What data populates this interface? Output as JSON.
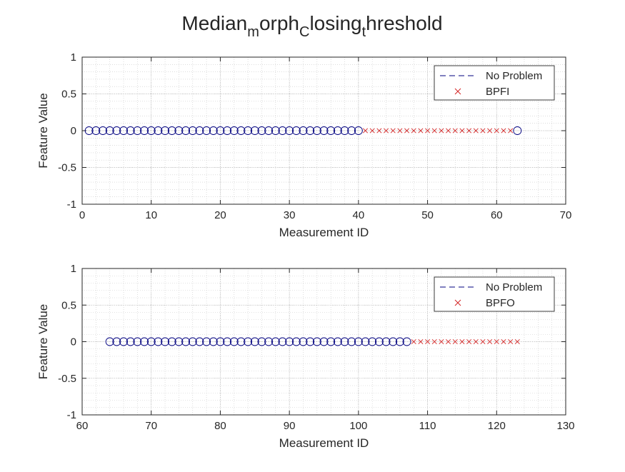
{
  "figure": {
    "title_parts": [
      {
        "text": "Median",
        "sub": false
      },
      {
        "text": "m",
        "sub": true
      },
      {
        "text": "orph",
        "sub": false
      },
      {
        "text": "C",
        "sub": true
      },
      {
        "text": "losing",
        "sub": false
      },
      {
        "text": "t",
        "sub": true
      },
      {
        "text": "hreshold",
        "sub": false
      }
    ]
  },
  "colors": {
    "no_problem": "#00007f",
    "fault": "#d32626",
    "axis": "#262626",
    "grid": "#d9d9d9"
  },
  "chart_data": [
    {
      "type": "scatter",
      "xlabel": "Measurement ID",
      "ylabel": "Feature Value",
      "xlim": [
        0,
        70
      ],
      "ylim": [
        -1,
        1
      ],
      "xticks": [
        "0",
        "10",
        "20",
        "30",
        "40",
        "50",
        "60",
        "70"
      ],
      "yticks": [
        "1",
        "0.5",
        "0",
        "-0.5",
        "-1"
      ],
      "grid": true,
      "minor_grid": true,
      "legend_position": "top-right",
      "series": [
        {
          "name": "No Problem",
          "marker": "circle",
          "color": "#00007f",
          "x": [
            1,
            2,
            3,
            4,
            5,
            6,
            7,
            8,
            9,
            10,
            11,
            12,
            13,
            14,
            15,
            16,
            17,
            18,
            19,
            20,
            21,
            22,
            23,
            24,
            25,
            26,
            27,
            28,
            29,
            30,
            31,
            32,
            33,
            34,
            35,
            36,
            37,
            38,
            39,
            40,
            63
          ],
          "y": [
            0,
            0,
            0,
            0,
            0,
            0,
            0,
            0,
            0,
            0,
            0,
            0,
            0,
            0,
            0,
            0,
            0,
            0,
            0,
            0,
            0,
            0,
            0,
            0,
            0,
            0,
            0,
            0,
            0,
            0,
            0,
            0,
            0,
            0,
            0,
            0,
            0,
            0,
            0,
            0,
            0
          ]
        },
        {
          "name": "BPFI",
          "marker": "x",
          "color": "#d32626",
          "x": [
            41,
            42,
            43,
            44,
            45,
            46,
            47,
            48,
            49,
            50,
            51,
            52,
            53,
            54,
            55,
            56,
            57,
            58,
            59,
            60,
            61,
            62
          ],
          "y": [
            0,
            0,
            0,
            0,
            0,
            0,
            0,
            0,
            0,
            0,
            0,
            0,
            0,
            0,
            0,
            0,
            0,
            0,
            0,
            0,
            0,
            0
          ]
        }
      ]
    },
    {
      "type": "scatter",
      "xlabel": "Measurement ID",
      "ylabel": "Feature Value",
      "xlim": [
        60,
        130
      ],
      "ylim": [
        -1,
        1
      ],
      "xticks": [
        "60",
        "70",
        "80",
        "90",
        "100",
        "110",
        "120",
        "130"
      ],
      "yticks": [
        "1",
        "0.5",
        "0",
        "-0.5",
        "-1"
      ],
      "grid": true,
      "minor_grid": true,
      "legend_position": "top-right",
      "series": [
        {
          "name": "No Problem",
          "marker": "circle",
          "color": "#00007f",
          "x": [
            64,
            65,
            66,
            67,
            68,
            69,
            70,
            71,
            72,
            73,
            74,
            75,
            76,
            77,
            78,
            79,
            80,
            81,
            82,
            83,
            84,
            85,
            86,
            87,
            88,
            89,
            90,
            91,
            92,
            93,
            94,
            95,
            96,
            97,
            98,
            99,
            100,
            101,
            102,
            103,
            104,
            105,
            106,
            107
          ],
          "y": [
            0,
            0,
            0,
            0,
            0,
            0,
            0,
            0,
            0,
            0,
            0,
            0,
            0,
            0,
            0,
            0,
            0,
            0,
            0,
            0,
            0,
            0,
            0,
            0,
            0,
            0,
            0,
            0,
            0,
            0,
            0,
            0,
            0,
            0,
            0,
            0,
            0,
            0,
            0,
            0,
            0,
            0,
            0,
            0
          ]
        },
        {
          "name": "BPFO",
          "marker": "x",
          "color": "#d32626",
          "x": [
            108,
            109,
            110,
            111,
            112,
            113,
            114,
            115,
            116,
            117,
            118,
            119,
            120,
            121,
            122,
            123
          ],
          "y": [
            0,
            0,
            0,
            0,
            0,
            0,
            0,
            0,
            0,
            0,
            0,
            0,
            0,
            0,
            0,
            0
          ]
        }
      ]
    }
  ]
}
